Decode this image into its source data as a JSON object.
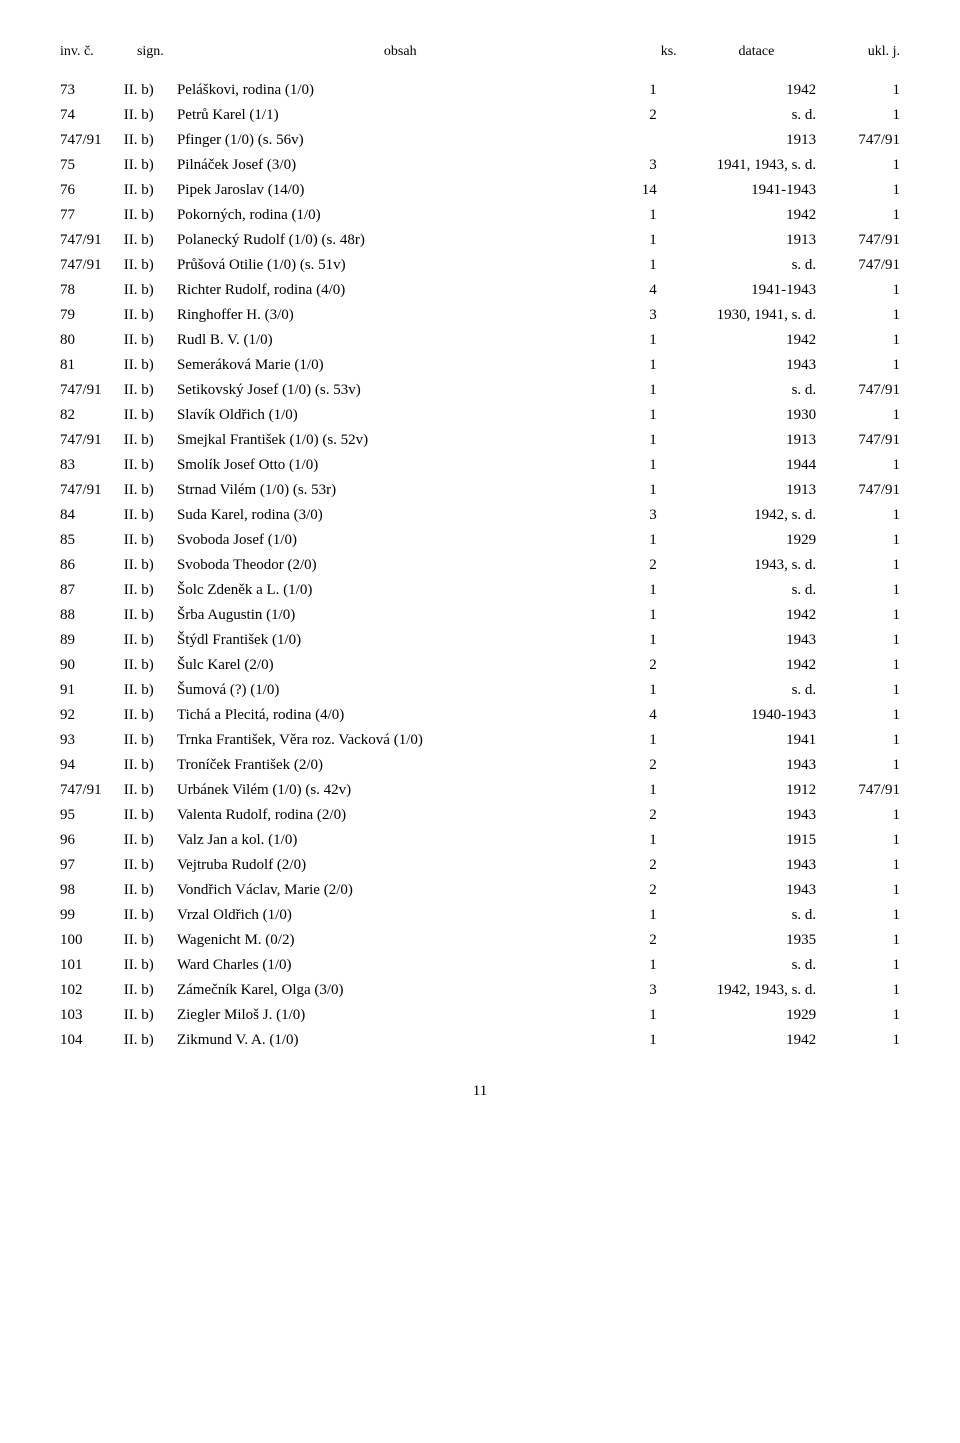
{
  "header": {
    "inv": "inv. č.",
    "sign": "sign.",
    "obsah": "obsah",
    "ks": "ks.",
    "datace": "datace",
    "ukl": "ukl. j."
  },
  "rows": [
    {
      "inv": "73",
      "sign": "II. b)",
      "obsah": "Peláškovi, rodina (1/0)",
      "ks": "1",
      "datace": "1942",
      "ukl": "1"
    },
    {
      "inv": "74",
      "sign": "II. b)",
      "obsah": "Petrů Karel (1/1)",
      "ks": "2",
      "datace": "s. d.",
      "ukl": "1"
    },
    {
      "inv": "747/91",
      "sign": "II. b)",
      "obsah": "Pfinger (1/0) (s. 56v)",
      "ks": "",
      "datace": "1913",
      "ukl": "747/91"
    },
    {
      "inv": "75",
      "sign": "II. b)",
      "obsah": "Pilnáček Josef (3/0)",
      "ks": "3",
      "datace": "1941, 1943, s. d.",
      "ukl": "1"
    },
    {
      "inv": "76",
      "sign": "II. b)",
      "obsah": "Pipek Jaroslav (14/0)",
      "ks": "14",
      "datace": "1941-1943",
      "ukl": "1"
    },
    {
      "inv": "77",
      "sign": "II. b)",
      "obsah": "Pokorných, rodina (1/0)",
      "ks": "1",
      "datace": "1942",
      "ukl": "1"
    },
    {
      "inv": "747/91",
      "sign": "II. b)",
      "obsah": "Polanecký Rudolf (1/0) (s. 48r)",
      "ks": "1",
      "datace": "1913",
      "ukl": "747/91"
    },
    {
      "inv": "747/91",
      "sign": "II. b)",
      "obsah": "Průšová Otilie (1/0) (s. 51v)",
      "ks": "1",
      "datace": "s. d.",
      "ukl": "747/91"
    },
    {
      "inv": "78",
      "sign": "II. b)",
      "obsah": "Richter Rudolf, rodina (4/0)",
      "ks": "4",
      "datace": "1941-1943",
      "ukl": "1"
    },
    {
      "inv": "79",
      "sign": "II. b)",
      "obsah": "Ringhoffer H. (3/0)",
      "ks": "3",
      "datace": "1930, 1941, s. d.",
      "ukl": "1"
    },
    {
      "inv": "80",
      "sign": "II. b)",
      "obsah": "Rudl B. V. (1/0)",
      "ks": "1",
      "datace": "1942",
      "ukl": "1"
    },
    {
      "inv": "81",
      "sign": "II. b)",
      "obsah": "Semeráková Marie (1/0)",
      "ks": "1",
      "datace": "1943",
      "ukl": "1"
    },
    {
      "inv": "747/91",
      "sign": "II. b)",
      "obsah": "Setikovský Josef (1/0) (s. 53v)",
      "ks": "1",
      "datace": "s. d.",
      "ukl": "747/91"
    },
    {
      "inv": "82",
      "sign": "II. b)",
      "obsah": "Slavík Oldřich (1/0)",
      "ks": "1",
      "datace": "1930",
      "ukl": "1"
    },
    {
      "inv": "747/91",
      "sign": "II. b)",
      "obsah": "Smejkal František (1/0) (s. 52v)",
      "ks": "1",
      "datace": "1913",
      "ukl": "747/91"
    },
    {
      "inv": "83",
      "sign": "II. b)",
      "obsah": "Smolík Josef Otto (1/0)",
      "ks": "1",
      "datace": "1944",
      "ukl": "1"
    },
    {
      "inv": "747/91",
      "sign": "II. b)",
      "obsah": "Strnad Vilém (1/0) (s. 53r)",
      "ks": "1",
      "datace": "1913",
      "ukl": "747/91"
    },
    {
      "inv": "84",
      "sign": "II. b)",
      "obsah": "Suda Karel, rodina (3/0)",
      "ks": "3",
      "datace": "1942, s. d.",
      "ukl": "1"
    },
    {
      "inv": "85",
      "sign": "II. b)",
      "obsah": "Svoboda Josef (1/0)",
      "ks": "1",
      "datace": "1929",
      "ukl": "1"
    },
    {
      "inv": "86",
      "sign": "II. b)",
      "obsah": "Svoboda Theodor (2/0)",
      "ks": "2",
      "datace": "1943, s. d.",
      "ukl": "1"
    },
    {
      "inv": "87",
      "sign": "II. b)",
      "obsah": "Šolc Zdeněk a L. (1/0)",
      "ks": "1",
      "datace": "s. d.",
      "ukl": "1"
    },
    {
      "inv": "88",
      "sign": "II. b)",
      "obsah": "Šrba Augustin (1/0)",
      "ks": "1",
      "datace": "1942",
      "ukl": "1"
    },
    {
      "inv": "89",
      "sign": "II. b)",
      "obsah": "Štýdl František (1/0)",
      "ks": "1",
      "datace": "1943",
      "ukl": "1"
    },
    {
      "inv": "90",
      "sign": "II. b)",
      "obsah": "Šulc Karel (2/0)",
      "ks": "2",
      "datace": "1942",
      "ukl": "1"
    },
    {
      "inv": "91",
      "sign": "II. b)",
      "obsah": "Šumová (?) (1/0)",
      "ks": "1",
      "datace": "s. d.",
      "ukl": "1"
    },
    {
      "inv": "92",
      "sign": "II. b)",
      "obsah": "Tichá a Plecitá, rodina (4/0)",
      "ks": "4",
      "datace": "1940-1943",
      "ukl": "1"
    },
    {
      "inv": "93",
      "sign": "II. b)",
      "obsah": "Trnka František, Věra roz. Vacková (1/0)",
      "ks": "1",
      "datace": "1941",
      "ukl": "1"
    },
    {
      "inv": "94",
      "sign": "II. b)",
      "obsah": "Troníček František (2/0)",
      "ks": "2",
      "datace": "1943",
      "ukl": "1"
    },
    {
      "inv": "747/91",
      "sign": "II. b)",
      "obsah": "Urbánek Vilém (1/0) (s. 42v)",
      "ks": "1",
      "datace": "1912",
      "ukl": "747/91"
    },
    {
      "inv": "95",
      "sign": "II. b)",
      "obsah": "Valenta Rudolf, rodina (2/0)",
      "ks": "2",
      "datace": "1943",
      "ukl": "1"
    },
    {
      "inv": "96",
      "sign": "II. b)",
      "obsah": "Valz Jan a kol. (1/0)",
      "ks": "1",
      "datace": "1915",
      "ukl": "1"
    },
    {
      "inv": "97",
      "sign": "II. b)",
      "obsah": "Vejtruba Rudolf (2/0)",
      "ks": "2",
      "datace": "1943",
      "ukl": "1"
    },
    {
      "inv": "98",
      "sign": "II. b)",
      "obsah": "Vondřich Václav, Marie (2/0)",
      "ks": "2",
      "datace": "1943",
      "ukl": "1"
    },
    {
      "inv": "99",
      "sign": "II. b)",
      "obsah": "Vrzal Oldřich (1/0)",
      "ks": "1",
      "datace": "s. d.",
      "ukl": "1"
    },
    {
      "inv": "100",
      "sign": "II. b)",
      "obsah": "Wagenicht M. (0/2)",
      "ks": "2",
      "datace": "1935",
      "ukl": "1"
    },
    {
      "inv": "101",
      "sign": "II. b)",
      "obsah": "Ward Charles (1/0)",
      "ks": "1",
      "datace": "s. d.",
      "ukl": "1"
    },
    {
      "inv": "102",
      "sign": "II. b)",
      "obsah": "Zámečník Karel, Olga (3/0)",
      "ks": "3",
      "datace": "1942, 1943, s. d.",
      "ukl": "1"
    },
    {
      "inv": "103",
      "sign": "II. b)",
      "obsah": "Ziegler Miloš J. (1/0)",
      "ks": "1",
      "datace": "1929",
      "ukl": "1"
    },
    {
      "inv": "104",
      "sign": "II. b)",
      "obsah": "Zikmund V. A. (1/0)",
      "ks": "1",
      "datace": "1942",
      "ukl": "1"
    }
  ],
  "page_number": "11"
}
